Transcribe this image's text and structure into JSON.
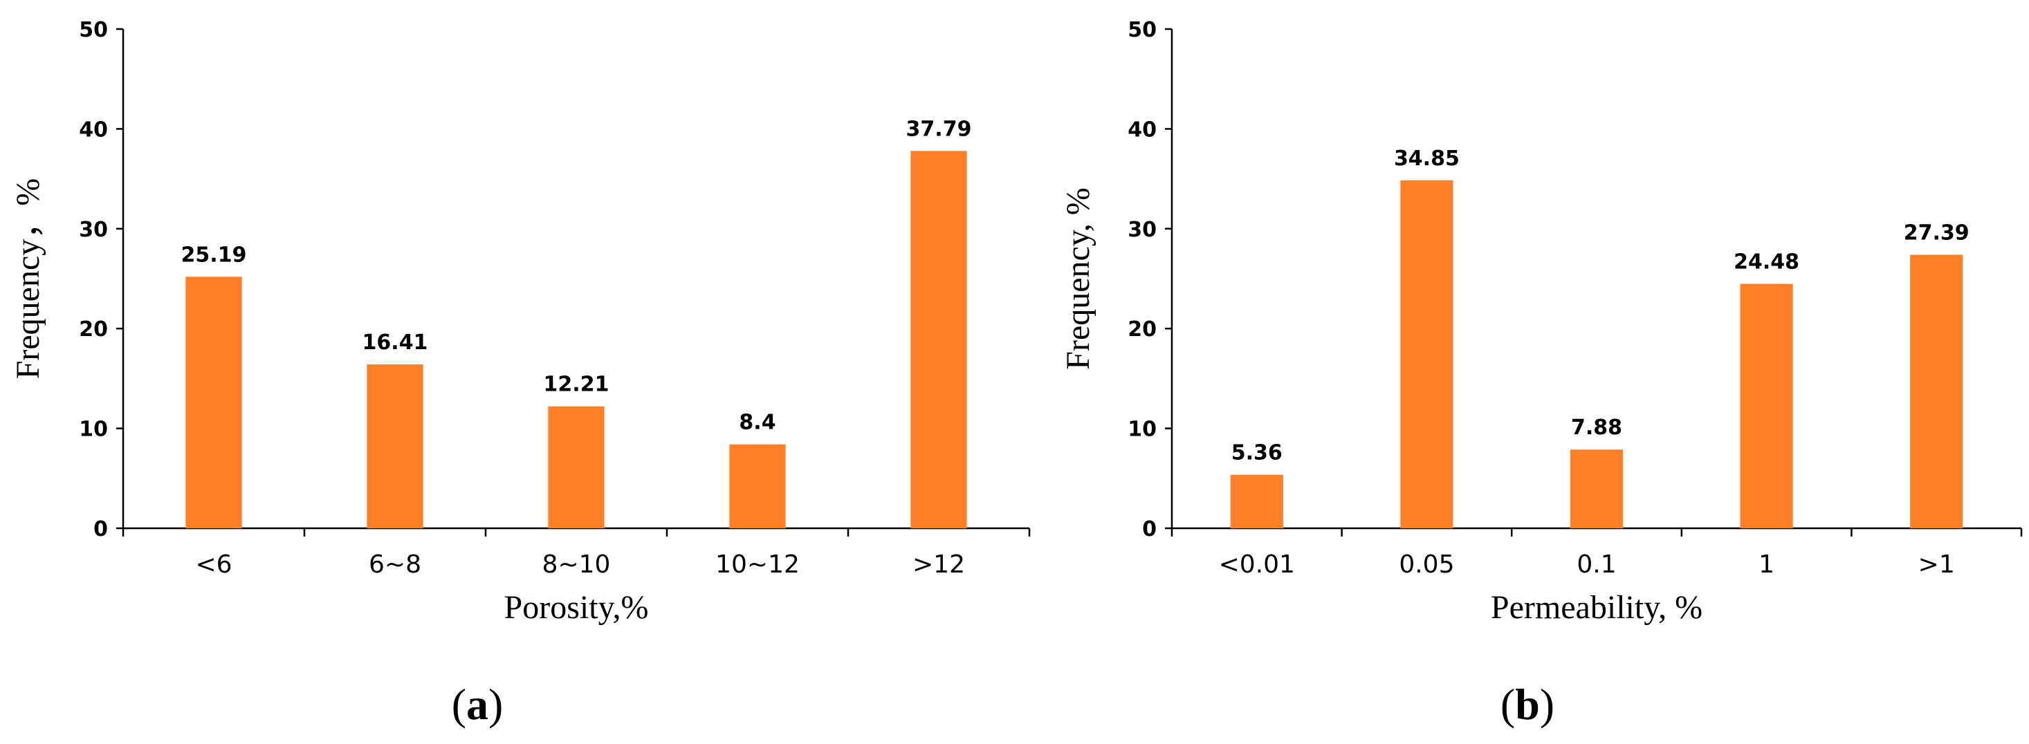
{
  "colors": {
    "bar": "#FF7F27",
    "axis": "#000000"
  },
  "chart_data": [
    {
      "type": "bar",
      "panel": "(a)",
      "panel_letter": "a",
      "categories": [
        "<6",
        "6~8",
        "8~10",
        "10~12",
        ">12"
      ],
      "values": [
        25.19,
        16.41,
        12.21,
        8.4,
        37.79
      ],
      "value_labels": [
        "25.19",
        "16.41",
        "12.21",
        "8.4",
        "37.79"
      ],
      "xlabel": "Porosity,%",
      "ylabel": "Frequency，%",
      "ylim": [
        0,
        50
      ],
      "yticks": [
        0,
        10,
        20,
        30,
        40,
        50
      ],
      "grid": false,
      "legend": "none"
    },
    {
      "type": "bar",
      "panel": "(b)",
      "panel_letter": "b",
      "categories": [
        "<0.01",
        "0.05",
        "0.1",
        "1",
        ">1"
      ],
      "values": [
        5.36,
        34.85,
        7.88,
        24.48,
        27.39
      ],
      "value_labels": [
        "5.36",
        "34.85",
        "7.88",
        "24.48",
        "27.39"
      ],
      "xlabel": "Permeability, %",
      "ylabel": "Frequency, %",
      "ylim": [
        0,
        50
      ],
      "yticks": [
        0,
        10,
        20,
        30,
        40,
        50
      ],
      "grid": false,
      "legend": "none"
    }
  ]
}
